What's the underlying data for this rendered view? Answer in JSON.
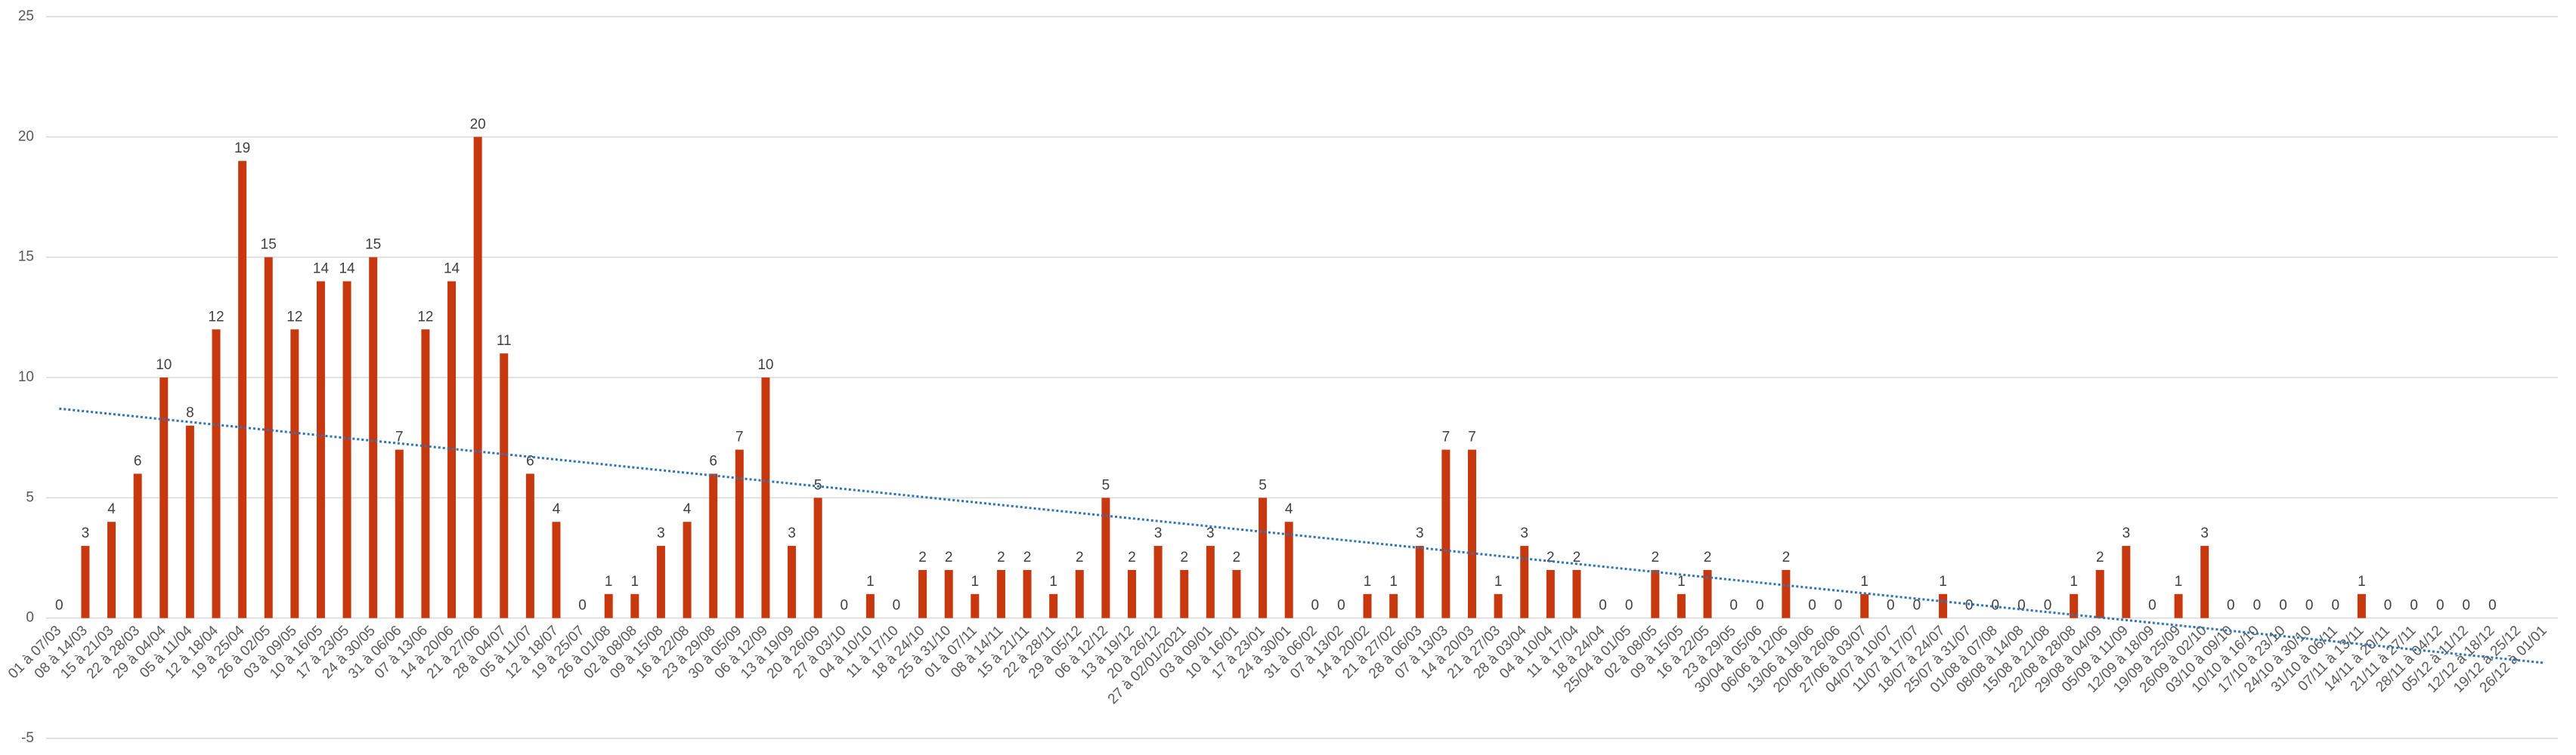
{
  "chart_data": {
    "type": "bar",
    "categories": [
      "01 à 07/03",
      "08 à 14/03",
      "15 à 21/03",
      "22 à 28/03",
      "29 à 04/04",
      "05 à 11/04",
      "12 à 18/04",
      "19 à 25/04",
      "26 à 02/05",
      "03 à 09/05",
      "10 à 16/05",
      "17 à 23/05",
      "24 à 30/05",
      "31 à 06/06",
      "07 à 13/06",
      "14 à 20/06",
      "21 à 27/06",
      "28 à 04/07",
      "05 à 11/07",
      "12 à 18/07",
      "19 à 25/07",
      "26 à 01/08",
      "02 à 08/08",
      "09 à 15/08",
      "16 à 22/08",
      "23 à 29/08",
      "30 à 05/09",
      "06 à 12/09",
      "13 à 19/09",
      "20 à 26/09",
      "27 à 03/10",
      "04 à 10/10",
      "11 à 17/10",
      "18 à 24/10",
      "25 à 31/10",
      "01 à 07/11",
      "08 à 14/11",
      "15 à 21/11",
      "22 à 28/11",
      "29 à 05/12",
      "06 à 12/12",
      "13 à 19/12",
      "20 à 26/12",
      "27 à 02/01/2021",
      "03 à 09/01",
      "10 à 16/01",
      "17 à 23/01",
      "24 à 30/01",
      "31 à 06/02",
      "07 à 13/02",
      "14 à 20/02",
      "21 à 27/02",
      "28 à 06/03",
      "07 à 13/03",
      "14 à 20/03",
      "21 à 27/03",
      "28 à 03/04",
      "04 à 10/04",
      "11 à 17/04",
      "18 à 24/04",
      "25/04 à 01/05",
      "02 à 08/05",
      "09 à 15/05",
      "16 à 22/05",
      "23 à 29/05",
      "30/04 à 05/06",
      "06/06 à 12/06",
      "13/06 à 19/06",
      "20/06 à 26/06",
      "27/06 à 03/07",
      "04/07 à 10/07",
      "11/07 à 17/07",
      "18/07 à 24/07",
      "25/07 à 31/07",
      "01/08 à 07/08",
      "08/08 à 14/08",
      "15/08 à 21/08",
      "22/08 à 28/08",
      "29/08 à 04/09",
      "05/09 à 11/09",
      "12/09 à 18/09",
      "19/09 à 25/09",
      "26/09 à 02/10",
      "03/10 à 09/10",
      "10/10 à 16/10",
      "17/10 à 23/10",
      "24/10 à 30/10",
      "31/10 à 06/11",
      "07/11 à 13/11",
      "14/11 à 20/11",
      "21/11 à 27/11",
      "28/11 à 04/12",
      "05/12 à 11/12",
      "12/12 à 18/12",
      "19/12 à 25/12",
      "26/12 à 01/01"
    ],
    "values": [
      0,
      3,
      4,
      6,
      10,
      8,
      12,
      19,
      15,
      12,
      14,
      14,
      15,
      7,
      12,
      14,
      20,
      11,
      6,
      4,
      0,
      1,
      1,
      3,
      4,
      6,
      7,
      10,
      3,
      5,
      0,
      1,
      0,
      2,
      2,
      1,
      2,
      2,
      1,
      2,
      5,
      2,
      3,
      2,
      3,
      2,
      5,
      4,
      0,
      0,
      1,
      1,
      3,
      7,
      7,
      1,
      3,
      2,
      2,
      0,
      0,
      2,
      1,
      2,
      0,
      0,
      2,
      0,
      0,
      1,
      0,
      0,
      1,
      0,
      0,
      0,
      0,
      1,
      2,
      3,
      0,
      1,
      3,
      0,
      0,
      0,
      0,
      0,
      1,
      0,
      0,
      0,
      0,
      0,
      null,
      null
    ],
    "color": "#c8380f",
    "ylim": [
      -5,
      25
    ],
    "yticks": [
      -5,
      0,
      5,
      10,
      15,
      20,
      25
    ],
    "grid": true,
    "trendline": "linear",
    "trendline_color": "#2e75b6"
  }
}
